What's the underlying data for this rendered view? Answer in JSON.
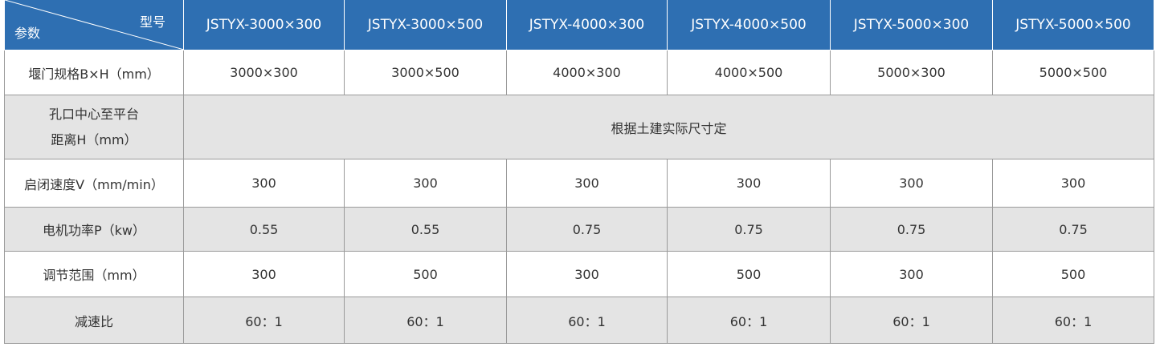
{
  "header": {
    "corner": {
      "top": "型号",
      "bottom": "参数"
    },
    "models": [
      "JSTYX-3000×300",
      "JSTYX-3000×500",
      "JSTYX-4000×300",
      "JSTYX-4000×500",
      "JSTYX-5000×300",
      "JSTYX-5000×500"
    ]
  },
  "rows": [
    {
      "label": "堰门规格B×H（mm）",
      "cells": [
        "3000×300",
        "3000×500",
        "4000×300",
        "4000×500",
        "5000×300",
        "5000×500"
      ]
    },
    {
      "label_lines": [
        "孔口中心至平台",
        "距离H（mm）"
      ],
      "merged": "根据土建实际尺寸定"
    },
    {
      "label": "启闭速度V（mm/min）",
      "cells": [
        "300",
        "300",
        "300",
        "300",
        "300",
        "300"
      ]
    },
    {
      "label": "电机功率P（kw）",
      "cells": [
        "0.55",
        "0.55",
        "0.75",
        "0.75",
        "0.75",
        "0.75"
      ]
    },
    {
      "label": "调节范围（mm）",
      "cells": [
        "300",
        "500",
        "300",
        "500",
        "300",
        "500"
      ]
    },
    {
      "label": "减速比",
      "cells": [
        "60：1",
        "60：1",
        "60：1",
        "60：1",
        "60：1",
        "60：1"
      ]
    }
  ]
}
